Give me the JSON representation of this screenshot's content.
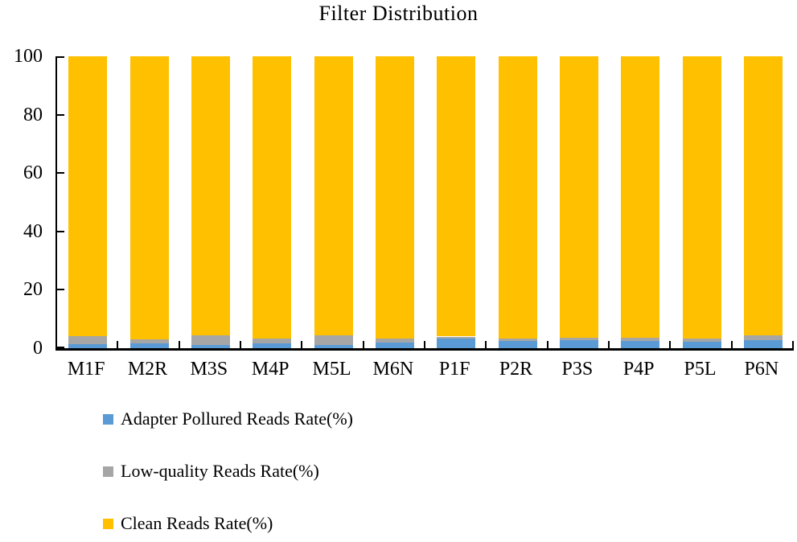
{
  "title": "Filter Distribution",
  "chart_data": {
    "type": "bar",
    "stacked": true,
    "title": "Filter Distribution",
    "xlabel": "",
    "ylabel": "",
    "ylim": [
      0,
      100
    ],
    "yticks": [
      0,
      20,
      40,
      60,
      80,
      100
    ],
    "grid": false,
    "legend_position": "bottom-left",
    "categories": [
      "M1F",
      "M2R",
      "M3S",
      "M4P",
      "M5L",
      "M6N",
      "P1F",
      "P2R",
      "P3S",
      "P4P",
      "P5L",
      "P6N"
    ],
    "series": [
      {
        "name": "Adapter Pollured Reads Rate(%)",
        "color": "#5B9BD5",
        "values": [
          1.4,
          1.7,
          1.1,
          1.7,
          1.1,
          1.9,
          3.3,
          2.5,
          2.8,
          2.5,
          2.2,
          2.8
        ]
      },
      {
        "name": "Low-quality Reads Rate(%)",
        "color": "#A6A6A6",
        "values": [
          2.7,
          1.4,
          3.2,
          1.7,
          3.2,
          1.4,
          0.7,
          0.8,
          0.8,
          1.1,
          1.1,
          1.5
        ]
      },
      {
        "name": "Clean Reads Rate(%)",
        "color": "#FFC000",
        "values": [
          95.9,
          96.9,
          95.7,
          96.6,
          95.7,
          96.7,
          96.0,
          96.7,
          96.4,
          96.4,
          96.7,
          95.7
        ]
      }
    ],
    "axis_color": "#000000",
    "text_color": "#000000"
  }
}
